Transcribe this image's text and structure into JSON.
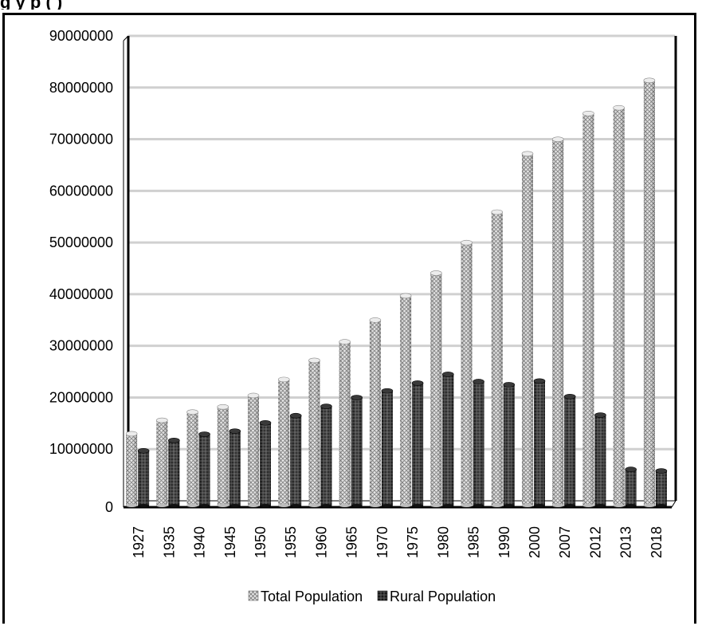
{
  "header": {
    "title_fragment": "g                                          y                                        p             (              )"
  },
  "colors": {
    "total": "#d9d9d9",
    "rural": "#222222",
    "grid": "#d0d0d0",
    "axis": "#000000"
  },
  "chart_data": {
    "type": "bar",
    "categories": [
      "1927",
      "1935",
      "1940",
      "1945",
      "1950",
      "1955",
      "1960",
      "1965",
      "1970",
      "1975",
      "1980",
      "1985",
      "1990",
      "2000",
      "2007",
      "2012",
      "2013",
      "2018"
    ],
    "series": [
      {
        "name": "Total Population",
        "values": [
          13600000,
          16200000,
          17800000,
          18800000,
          21000000,
          24100000,
          27800000,
          31400000,
          35600000,
          40300000,
          44700000,
          50600000,
          56500000,
          67800000,
          70600000,
          75600000,
          76700000,
          82000000
        ]
      },
      {
        "name": "Rural Population",
        "values": [
          10300000,
          12300000,
          13500000,
          14100000,
          15700000,
          17100000,
          18900000,
          20600000,
          21900000,
          23400000,
          25100000,
          23700000,
          23100000,
          23800000,
          20800000,
          17200000,
          6700000,
          6400000
        ]
      }
    ],
    "ylim": [
      0,
      90000000
    ],
    "yticks": [
      "0",
      "10000000",
      "20000000",
      "30000000",
      "40000000",
      "50000000",
      "60000000",
      "70000000",
      "80000000",
      "90000000"
    ],
    "grid": true,
    "legend": {
      "position": "bottom",
      "entries": [
        "Total Population",
        "Rural Population"
      ]
    }
  }
}
